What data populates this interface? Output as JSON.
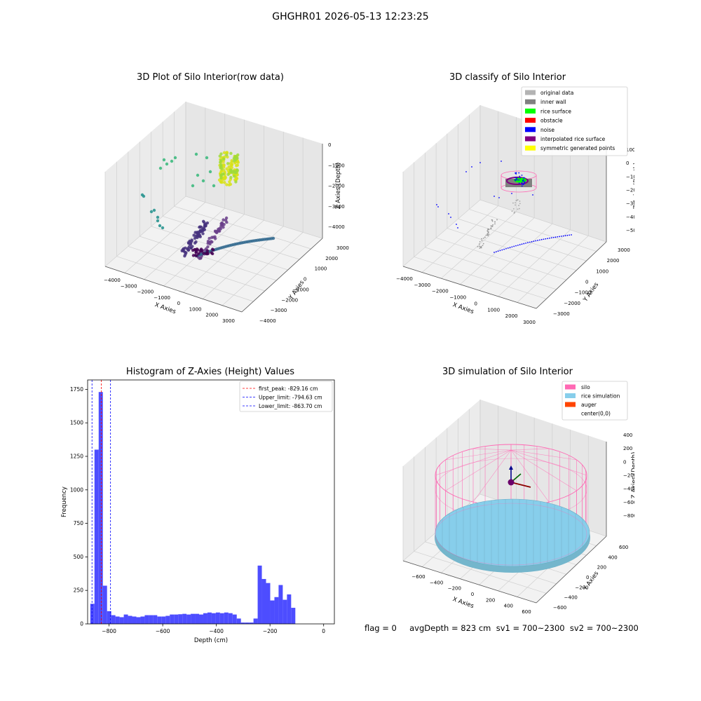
{
  "suptitle": "GHGHR01 2026-05-13 12:23:25",
  "footer": "flag = 0     avgDepth = 823 cm  sv1 = 700~2300  sv2 = 700~2300",
  "colors": {
    "rice_green": "#00ff00",
    "noise_blue": "#0000ff",
    "inner_wall": "#808080",
    "original": "#b3b3b3",
    "obstacle": "#ff0000",
    "interp": "#800080",
    "symmetric": "#ffff00",
    "silo_pink": "#ff69b4",
    "rice_sim": "#87ceeb",
    "auger": "#ff4500",
    "hist_bar": "#4d4dff"
  },
  "panels": {
    "p1": {
      "title": "3D Plot of Silo Interior(row data)",
      "xlabel": "X Axies",
      "ylabel": "Y Axies",
      "zlabel": "Z Axies (Depth)",
      "xticks": [
        "−4000",
        "−3000",
        "−2000",
        "−1000",
        "0",
        "1000",
        "2000",
        "3000"
      ],
      "yticks": [
        "−4000",
        "−3000",
        "−2000",
        "−1000",
        "0",
        "1000",
        "2000",
        "3000"
      ],
      "zticks": [
        "0",
        "−1000",
        "−2000",
        "−3000",
        "−4000"
      ]
    },
    "p2": {
      "title": "3D classify of Silo Interior",
      "xlabel": "X Axies",
      "ylabel": "Y Axies",
      "zlabel": "Z Axies (Depth)",
      "xticks": [
        "−4000",
        "−3000",
        "−2000",
        "−1000",
        "0",
        "1000",
        "2000",
        "3000"
      ],
      "yticks": [
        "−3000",
        "−2000",
        "−1000",
        "0",
        "1000",
        "2000",
        "3000"
      ],
      "zticks": [
        "1000",
        "0",
        "−1000",
        "−2000",
        "−3000",
        "−4000",
        "−5000"
      ],
      "legend": [
        {
          "label": "original data",
          "color": "#b3b3b3"
        },
        {
          "label": "inner wall",
          "color": "#808080"
        },
        {
          "label": "rice surface",
          "color": "#00ff00"
        },
        {
          "label": "obstacle",
          "color": "#ff0000"
        },
        {
          "label": "noise",
          "color": "#0000ff"
        },
        {
          "label": "interpolated rice surface",
          "color": "#800080"
        },
        {
          "label": "symmetric generated points",
          "color": "#ffff00"
        }
      ]
    },
    "p4": {
      "title": "3D simulation of Silo Interior",
      "xlabel": "X Axies",
      "ylabel": "Y Axies",
      "zlabel": "Z Axies (Depth)",
      "xticks": [
        "−600",
        "−400",
        "−200",
        "0",
        "200",
        "400",
        "600"
      ],
      "yticks": [
        "−600",
        "−400",
        "−200",
        "0",
        "200",
        "400",
        "600"
      ],
      "zticks": [
        "400",
        "200",
        "0",
        "−200",
        "−400",
        "−600",
        "−800"
      ],
      "legend": [
        {
          "label": "silo",
          "color": "#ff69b4"
        },
        {
          "label": "rice simulation",
          "color": "#87ceeb"
        },
        {
          "label": "auger",
          "color": "#ff4500"
        },
        {
          "label": "center(0,0)",
          "color": ""
        }
      ]
    }
  },
  "chart_data": [
    {
      "type": "scatter",
      "title": "3D Plot of Silo Interior(row data)",
      "xlabel": "X Axies",
      "ylabel": "Y Axies",
      "zlabel": "Z Axies (Depth)",
      "xlim": [
        -4000,
        3000
      ],
      "ylim": [
        -4000,
        3000
      ],
      "zlim": [
        -4500,
        0
      ],
      "colormap": "viridis by depth"
    },
    {
      "type": "scatter",
      "title": "3D classify of Silo Interior",
      "xlabel": "X Axies",
      "ylabel": "Y Axies",
      "zlabel": "Z Axies (Depth)",
      "xlim": [
        -4000,
        3000
      ],
      "ylim": [
        -3000,
        3000
      ],
      "zlim": [
        -5000,
        1000
      ],
      "legend_position": "top-right"
    },
    {
      "type": "bar",
      "title": "Histogram of Z-Axies (Height) Values",
      "xlabel": "Depth (cm)",
      "ylabel": "Frequency",
      "xlim": [
        -880,
        40
      ],
      "ylim": [
        0,
        1820
      ],
      "xticks": [
        -800,
        -600,
        -400,
        -200,
        0
      ],
      "yticks": [
        0,
        250,
        500,
        750,
        1000,
        1250,
        1500,
        1750
      ],
      "bin_start": -870,
      "bin_width": 15.6,
      "values": [
        150,
        1300,
        1730,
        285,
        95,
        65,
        55,
        50,
        70,
        60,
        55,
        50,
        55,
        65,
        65,
        65,
        55,
        55,
        60,
        70,
        70,
        72,
        75,
        70,
        75,
        75,
        70,
        80,
        85,
        80,
        85,
        80,
        85,
        80,
        70,
        40,
        10,
        10,
        10,
        40,
        435,
        335,
        305,
        175,
        200,
        290,
        180,
        220,
        120
      ],
      "vlines": [
        {
          "label": "first_peak: -829.16 cm",
          "x": -829.16,
          "color": "#ff0000"
        },
        {
          "label": "Upper_limit: -794.63 cm",
          "x": -794.63,
          "color": "#0000ff"
        },
        {
          "label": "Lower_limit: -863.70 cm",
          "x": -863.7,
          "color": "#0000ff"
        }
      ],
      "legend_position": "top-right"
    },
    {
      "type": "surface",
      "title": "3D simulation of Silo Interior",
      "xlabel": "X Axies",
      "ylabel": "Y Axies",
      "zlabel": "Z Axies (Depth)",
      "xlim": [
        -700,
        700
      ],
      "ylim": [
        -700,
        700
      ],
      "zlim": [
        -900,
        450
      ],
      "legend_position": "top-right"
    }
  ]
}
